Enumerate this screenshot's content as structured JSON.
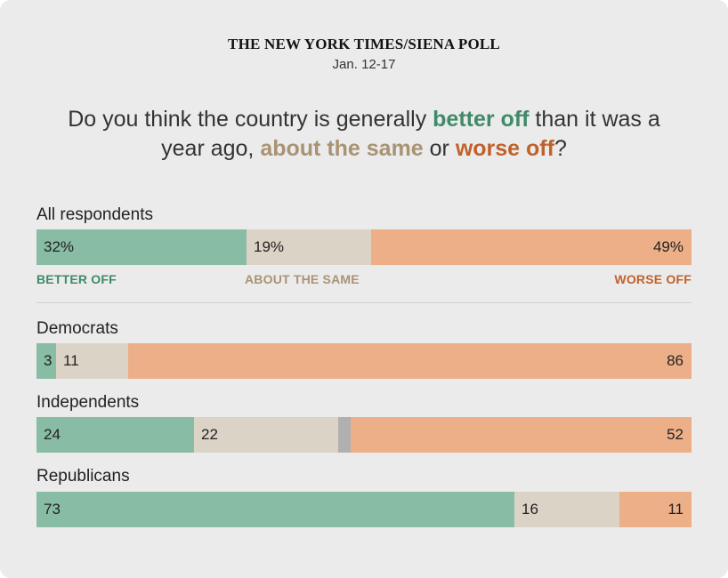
{
  "header": {
    "source": "THE NEW YORK TIMES/SIENA POLL",
    "dates": "Jan. 12-17"
  },
  "question": {
    "part1": "Do you think the country is generally ",
    "better": "better off",
    "part2": " than it was a year ago, ",
    "same": "about the same",
    "part3": " or ",
    "worse": "worse off",
    "part4": "?"
  },
  "legend": {
    "better": "BETTER OFF",
    "same": "ABOUT THE SAME",
    "worse": "WORSE OFF"
  },
  "colors": {
    "better": "#89bca4",
    "same": "#dbd3c6",
    "worse": "#ecaf88",
    "other": "#b0b0b0",
    "better_text": "#3f8a68",
    "same_text": "#a99373",
    "worse_text": "#c0612c"
  },
  "chart_data": {
    "type": "bar",
    "stacked": true,
    "orientation": "horizontal",
    "units": "percent",
    "xlim": [
      0,
      100
    ],
    "categories": [
      "All respondents",
      "Democrats",
      "Independents",
      "Republicans"
    ],
    "series": [
      {
        "name": "BETTER OFF",
        "values": [
          32,
          3,
          24,
          73
        ]
      },
      {
        "name": "ABOUT THE SAME",
        "values": [
          19,
          11,
          22,
          16
        ]
      },
      {
        "name": "WORSE OFF",
        "values": [
          49,
          86,
          52,
          11
        ]
      }
    ],
    "labels": {
      "better": [
        "32%",
        "3",
        "24",
        "73"
      ],
      "same": [
        "19%",
        "11",
        "22",
        "16"
      ],
      "worse": [
        "49%",
        "86",
        "52",
        "11"
      ]
    }
  }
}
